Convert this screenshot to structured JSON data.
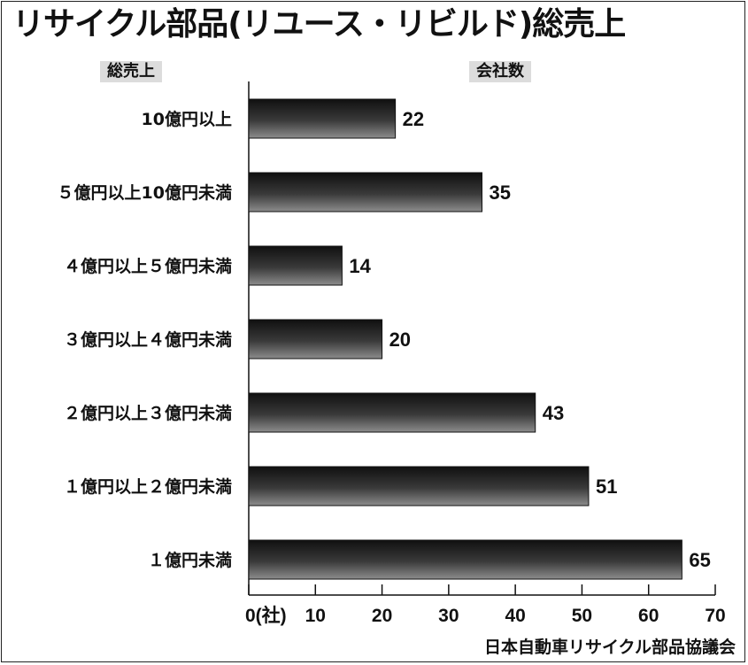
{
  "chart_data": {
    "type": "bar",
    "orientation": "horizontal",
    "title": "リサイクル部品(リユース・リビルド)総売上",
    "category_axis_label": "総売上",
    "value_axis_label": "会社数",
    "categories": [
      "10億円以上",
      "５億円以上10億円未満",
      "４億円以上５億円未満",
      "３億円以上４億円未満",
      "２億円以上３億円未満",
      "１億円以上２億円未満",
      "１億円未満"
    ],
    "values": [
      22,
      35,
      14,
      20,
      43,
      51,
      65
    ],
    "xlim": [
      0,
      70
    ],
    "xticks": [
      0,
      10,
      20,
      30,
      40,
      50,
      60,
      70
    ],
    "xtick_labels": [
      "0(社)",
      "10",
      "20",
      "30",
      "40",
      "50",
      "60",
      "70"
    ],
    "grid": false,
    "source": "日本自動車リサイクル部品協議会",
    "colors": {
      "bar_dark": "#1a1a1a",
      "bar_light": "#909090",
      "header_bg": "#dcdcdc"
    }
  }
}
